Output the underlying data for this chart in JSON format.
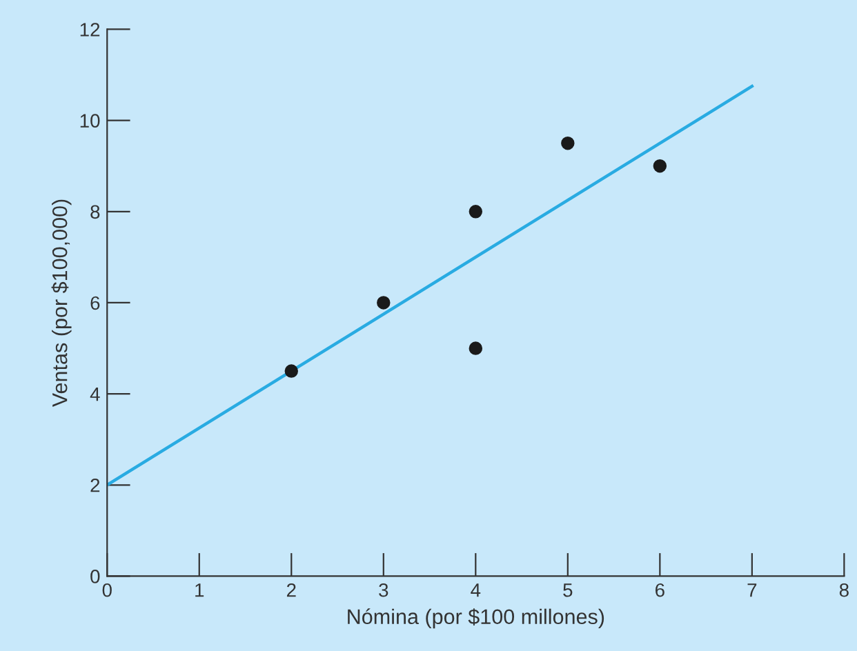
{
  "chart_data": {
    "type": "scatter",
    "xlabel": "Nómina (por $100 millones)",
    "ylabel": "Ventas (por $100,000)",
    "xlim": [
      0,
      8
    ],
    "ylim": [
      0,
      12
    ],
    "xticks": [
      0,
      1,
      2,
      3,
      4,
      5,
      6,
      7,
      8
    ],
    "yticks": [
      0,
      2,
      4,
      6,
      8,
      10,
      12
    ],
    "grid": false,
    "series": [
      {
        "marker": "circle",
        "color": "#1a1a1a",
        "x": [
          2,
          3,
          4,
          4,
          5,
          6
        ],
        "values": [
          4.5,
          6,
          8,
          5,
          9.5,
          9
        ]
      },
      {
        "type": "line",
        "color": "#29abe2",
        "x": [
          0,
          7
        ],
        "values": [
          2,
          10.75
        ]
      }
    ]
  }
}
